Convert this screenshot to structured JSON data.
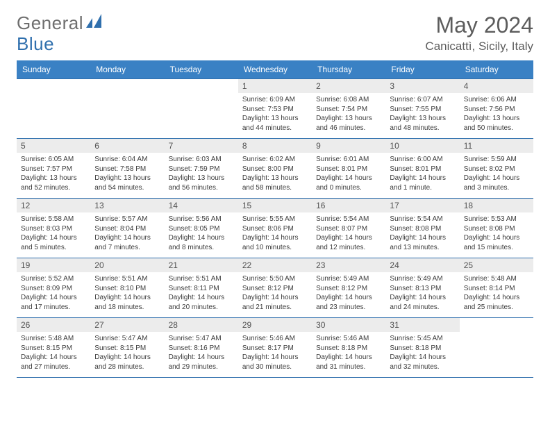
{
  "brand": {
    "general": "General",
    "blue": "Blue"
  },
  "title": {
    "month": "May 2024",
    "location": "Canicattì, Sicily, Italy"
  },
  "weekdays": [
    "Sunday",
    "Monday",
    "Tuesday",
    "Wednesday",
    "Thursday",
    "Friday",
    "Saturday"
  ],
  "colors": {
    "header_bg": "#3a81c4",
    "header_text": "#ffffff",
    "rule": "#2f6fad",
    "daynum_bg": "#ececec",
    "text": "#3b3b3b",
    "title_text": "#5c5c5c",
    "logo_gray": "#6e6e6e",
    "logo_blue": "#2f6fad"
  },
  "weeks": [
    [
      {
        "n": "",
        "sr": "",
        "ss": "",
        "dl": ""
      },
      {
        "n": "",
        "sr": "",
        "ss": "",
        "dl": ""
      },
      {
        "n": "",
        "sr": "",
        "ss": "",
        "dl": ""
      },
      {
        "n": "1",
        "sr": "Sunrise: 6:09 AM",
        "ss": "Sunset: 7:53 PM",
        "dl": "Daylight: 13 hours and 44 minutes."
      },
      {
        "n": "2",
        "sr": "Sunrise: 6:08 AM",
        "ss": "Sunset: 7:54 PM",
        "dl": "Daylight: 13 hours and 46 minutes."
      },
      {
        "n": "3",
        "sr": "Sunrise: 6:07 AM",
        "ss": "Sunset: 7:55 PM",
        "dl": "Daylight: 13 hours and 48 minutes."
      },
      {
        "n": "4",
        "sr": "Sunrise: 6:06 AM",
        "ss": "Sunset: 7:56 PM",
        "dl": "Daylight: 13 hours and 50 minutes."
      }
    ],
    [
      {
        "n": "5",
        "sr": "Sunrise: 6:05 AM",
        "ss": "Sunset: 7:57 PM",
        "dl": "Daylight: 13 hours and 52 minutes."
      },
      {
        "n": "6",
        "sr": "Sunrise: 6:04 AM",
        "ss": "Sunset: 7:58 PM",
        "dl": "Daylight: 13 hours and 54 minutes."
      },
      {
        "n": "7",
        "sr": "Sunrise: 6:03 AM",
        "ss": "Sunset: 7:59 PM",
        "dl": "Daylight: 13 hours and 56 minutes."
      },
      {
        "n": "8",
        "sr": "Sunrise: 6:02 AM",
        "ss": "Sunset: 8:00 PM",
        "dl": "Daylight: 13 hours and 58 minutes."
      },
      {
        "n": "9",
        "sr": "Sunrise: 6:01 AM",
        "ss": "Sunset: 8:01 PM",
        "dl": "Daylight: 14 hours and 0 minutes."
      },
      {
        "n": "10",
        "sr": "Sunrise: 6:00 AM",
        "ss": "Sunset: 8:01 PM",
        "dl": "Daylight: 14 hours and 1 minute."
      },
      {
        "n": "11",
        "sr": "Sunrise: 5:59 AM",
        "ss": "Sunset: 8:02 PM",
        "dl": "Daylight: 14 hours and 3 minutes."
      }
    ],
    [
      {
        "n": "12",
        "sr": "Sunrise: 5:58 AM",
        "ss": "Sunset: 8:03 PM",
        "dl": "Daylight: 14 hours and 5 minutes."
      },
      {
        "n": "13",
        "sr": "Sunrise: 5:57 AM",
        "ss": "Sunset: 8:04 PM",
        "dl": "Daylight: 14 hours and 7 minutes."
      },
      {
        "n": "14",
        "sr": "Sunrise: 5:56 AM",
        "ss": "Sunset: 8:05 PM",
        "dl": "Daylight: 14 hours and 8 minutes."
      },
      {
        "n": "15",
        "sr": "Sunrise: 5:55 AM",
        "ss": "Sunset: 8:06 PM",
        "dl": "Daylight: 14 hours and 10 minutes."
      },
      {
        "n": "16",
        "sr": "Sunrise: 5:54 AM",
        "ss": "Sunset: 8:07 PM",
        "dl": "Daylight: 14 hours and 12 minutes."
      },
      {
        "n": "17",
        "sr": "Sunrise: 5:54 AM",
        "ss": "Sunset: 8:08 PM",
        "dl": "Daylight: 14 hours and 13 minutes."
      },
      {
        "n": "18",
        "sr": "Sunrise: 5:53 AM",
        "ss": "Sunset: 8:08 PM",
        "dl": "Daylight: 14 hours and 15 minutes."
      }
    ],
    [
      {
        "n": "19",
        "sr": "Sunrise: 5:52 AM",
        "ss": "Sunset: 8:09 PM",
        "dl": "Daylight: 14 hours and 17 minutes."
      },
      {
        "n": "20",
        "sr": "Sunrise: 5:51 AM",
        "ss": "Sunset: 8:10 PM",
        "dl": "Daylight: 14 hours and 18 minutes."
      },
      {
        "n": "21",
        "sr": "Sunrise: 5:51 AM",
        "ss": "Sunset: 8:11 PM",
        "dl": "Daylight: 14 hours and 20 minutes."
      },
      {
        "n": "22",
        "sr": "Sunrise: 5:50 AM",
        "ss": "Sunset: 8:12 PM",
        "dl": "Daylight: 14 hours and 21 minutes."
      },
      {
        "n": "23",
        "sr": "Sunrise: 5:49 AM",
        "ss": "Sunset: 8:12 PM",
        "dl": "Daylight: 14 hours and 23 minutes."
      },
      {
        "n": "24",
        "sr": "Sunrise: 5:49 AM",
        "ss": "Sunset: 8:13 PM",
        "dl": "Daylight: 14 hours and 24 minutes."
      },
      {
        "n": "25",
        "sr": "Sunrise: 5:48 AM",
        "ss": "Sunset: 8:14 PM",
        "dl": "Daylight: 14 hours and 25 minutes."
      }
    ],
    [
      {
        "n": "26",
        "sr": "Sunrise: 5:48 AM",
        "ss": "Sunset: 8:15 PM",
        "dl": "Daylight: 14 hours and 27 minutes."
      },
      {
        "n": "27",
        "sr": "Sunrise: 5:47 AM",
        "ss": "Sunset: 8:15 PM",
        "dl": "Daylight: 14 hours and 28 minutes."
      },
      {
        "n": "28",
        "sr": "Sunrise: 5:47 AM",
        "ss": "Sunset: 8:16 PM",
        "dl": "Daylight: 14 hours and 29 minutes."
      },
      {
        "n": "29",
        "sr": "Sunrise: 5:46 AM",
        "ss": "Sunset: 8:17 PM",
        "dl": "Daylight: 14 hours and 30 minutes."
      },
      {
        "n": "30",
        "sr": "Sunrise: 5:46 AM",
        "ss": "Sunset: 8:18 PM",
        "dl": "Daylight: 14 hours and 31 minutes."
      },
      {
        "n": "31",
        "sr": "Sunrise: 5:45 AM",
        "ss": "Sunset: 8:18 PM",
        "dl": "Daylight: 14 hours and 32 minutes."
      },
      {
        "n": "",
        "sr": "",
        "ss": "",
        "dl": ""
      }
    ]
  ]
}
